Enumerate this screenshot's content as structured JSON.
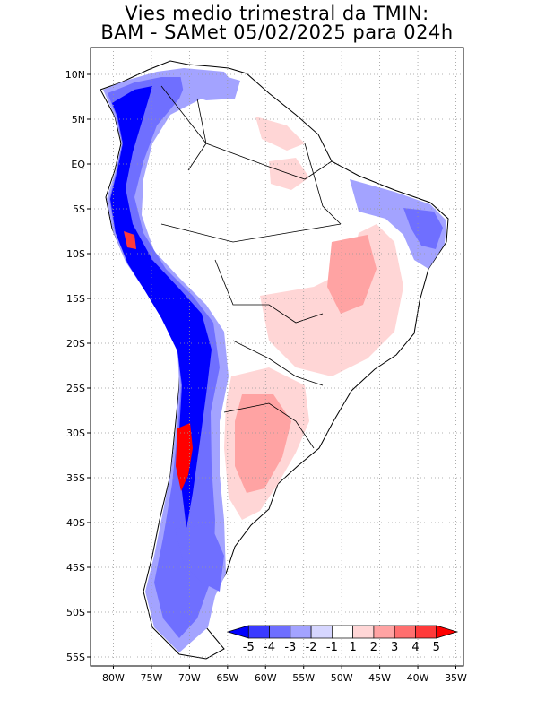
{
  "title": {
    "line1": "Vies medio trimestral da TMIN:",
    "line2": "BAM - SAMet 05/02/2025  para 024h"
  },
  "map": {
    "lat_range": [
      -56,
      13
    ],
    "lon_range": [
      -83,
      -34
    ],
    "lat_ticks": [
      {
        "value": 10,
        "label": "10N"
      },
      {
        "value": 5,
        "label": "5N"
      },
      {
        "value": 0,
        "label": "EQ"
      },
      {
        "value": -5,
        "label": "5S"
      },
      {
        "value": -10,
        "label": "10S"
      },
      {
        "value": -15,
        "label": "15S"
      },
      {
        "value": -20,
        "label": "20S"
      },
      {
        "value": -25,
        "label": "25S"
      },
      {
        "value": -30,
        "label": "30S"
      },
      {
        "value": -35,
        "label": "35S"
      },
      {
        "value": -40,
        "label": "40S"
      },
      {
        "value": -45,
        "label": "45S"
      },
      {
        "value": -50,
        "label": "50S"
      },
      {
        "value": -55,
        "label": "55S"
      }
    ],
    "lon_ticks": [
      {
        "value": -80,
        "label": "80W"
      },
      {
        "value": -75,
        "label": "75W"
      },
      {
        "value": -70,
        "label": "70W"
      },
      {
        "value": -65,
        "label": "65W"
      },
      {
        "value": -60,
        "label": "60W"
      },
      {
        "value": -55,
        "label": "55W"
      },
      {
        "value": -50,
        "label": "50W"
      },
      {
        "value": -45,
        "label": "45W"
      },
      {
        "value": -40,
        "label": "40W"
      },
      {
        "value": -35,
        "label": "35W"
      }
    ],
    "grid": "dotted"
  },
  "colorbar": {
    "labels": [
      "-5",
      "-4",
      "-3",
      "-2",
      "-1",
      "1",
      "2",
      "3",
      "4",
      "5"
    ],
    "colors": [
      "#0000ff",
      "#3a3aff",
      "#6f6fff",
      "#a3a3ff",
      "#d6d6ff",
      "#ffffff",
      "#ffd6d6",
      "#ffa3a3",
      "#ff6f6f",
      "#ff3a3a",
      "#ff0000"
    ]
  },
  "regions": {
    "andes_colors": [
      "#0000ff",
      "#3a3aff",
      "#6f6fff",
      "#a3a3ff",
      "#d6d6ff"
    ],
    "warm_colors": [
      "#ffd6d6",
      "#ffa3a3",
      "#ff6f6f",
      "#ff0000"
    ]
  }
}
